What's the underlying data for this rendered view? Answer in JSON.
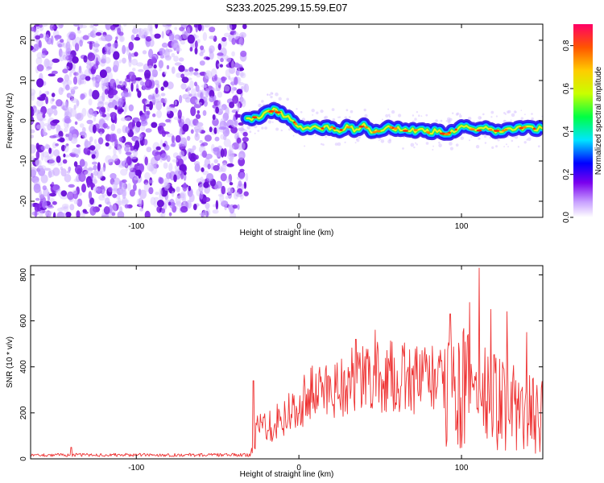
{
  "figure": {
    "title": "S233.2025.299.15.59.E07"
  },
  "chart_data": [
    {
      "type": "heatmap",
      "title": "S233.2025.299.15.59.E07",
      "xlabel": "Height of straight line (km)",
      "ylabel": "Frequency (Hz)",
      "xlim": [
        -165,
        150
      ],
      "ylim": [
        -24,
        24
      ],
      "xticks": [
        -100,
        0,
        100
      ],
      "yticks": [
        -20,
        -10,
        0,
        10,
        20
      ],
      "xtick_labels": [
        "-100",
        "0",
        "100"
      ],
      "ytick_labels": [
        "-20",
        "-10",
        "0",
        "10",
        "20"
      ],
      "noise_region_x": [
        -165,
        -32
      ],
      "signal_onset_x": -32,
      "doppler_trace": {
        "x": [
          -32,
          -25,
          -20,
          -15,
          -10,
          -5,
          0,
          5,
          10,
          15,
          20,
          25,
          30,
          35,
          40,
          45,
          50,
          55,
          60,
          65,
          70,
          75,
          80,
          85,
          90,
          95,
          100,
          105,
          110,
          115,
          120,
          125,
          130,
          135,
          140,
          145,
          150
        ],
        "y": [
          0.5,
          1.0,
          2.0,
          2.5,
          1.5,
          0.5,
          -1.5,
          -2.0,
          -1.0,
          -2.0,
          -1.5,
          -2.5,
          -1.5,
          -2.5,
          -1.0,
          -3.0,
          -2.5,
          -1.5,
          -2.0,
          -2.5,
          -2.5,
          -2.0,
          -3.0,
          -2.5,
          -3.5,
          -2.5,
          -1.5,
          -2.0,
          -2.5,
          -2.0,
          -2.5,
          -2.5,
          -2.0,
          -2.0,
          -1.5,
          -2.0,
          -2.0
        ]
      },
      "colorbar": {
        "label": "Normalized spectral amplitude",
        "range": [
          0,
          0.9
        ],
        "ticks": [
          0,
          0.2,
          0.4,
          0.6,
          0.8
        ],
        "tick_labels": [
          "0.0",
          "0.2",
          "0.4",
          "0.6",
          "0.8"
        ]
      }
    },
    {
      "type": "line",
      "xlabel": "Height of straight line (km)",
      "ylabel": "SNR (10 * v/v)",
      "xlim": [
        -165,
        150
      ],
      "ylim": [
        0,
        840
      ],
      "xticks": [
        -100,
        0,
        100
      ],
      "yticks": [
        0,
        200,
        400,
        600,
        800
      ],
      "xtick_labels": [
        "-100",
        "0",
        "100"
      ],
      "ytick_labels": [
        "0",
        "200",
        "400",
        "600",
        "800"
      ],
      "series": [
        {
          "name": "SNR",
          "color": "#ee3333",
          "x": [
            -165,
            -140,
            -120,
            -100,
            -80,
            -60,
            -40,
            -30,
            -25,
            -20,
            -15,
            -10,
            -5,
            0,
            5,
            10,
            15,
            20,
            25,
            30,
            35,
            40,
            45,
            50,
            55,
            60,
            65,
            70,
            75,
            80,
            85,
            90,
            95,
            100,
            105,
            110,
            115,
            120,
            125,
            130,
            135,
            140,
            145,
            150
          ],
          "y": [
            20,
            20,
            20,
            20,
            20,
            20,
            20,
            25,
            150,
            170,
            180,
            210,
            220,
            240,
            270,
            290,
            300,
            310,
            320,
            330,
            340,
            345,
            350,
            350,
            355,
            355,
            350,
            350,
            345,
            340,
            330,
            330,
            320,
            300,
            300,
            280,
            260,
            250,
            240,
            230,
            220,
            200,
            190,
            180
          ],
          "spikes": [
            {
              "x": -140,
              "y": 50
            },
            {
              "x": -28,
              "y": 340
            },
            {
              "x": 35,
              "y": 520
            },
            {
              "x": 47,
              "y": 560
            },
            {
              "x": 82,
              "y": 490
            },
            {
              "x": 93,
              "y": 630
            },
            {
              "x": 105,
              "y": 680
            },
            {
              "x": 111,
              "y": 830
            },
            {
              "x": 118,
              "y": 650
            },
            {
              "x": 128,
              "y": 640
            },
            {
              "x": 140,
              "y": 550
            }
          ]
        }
      ]
    }
  ]
}
